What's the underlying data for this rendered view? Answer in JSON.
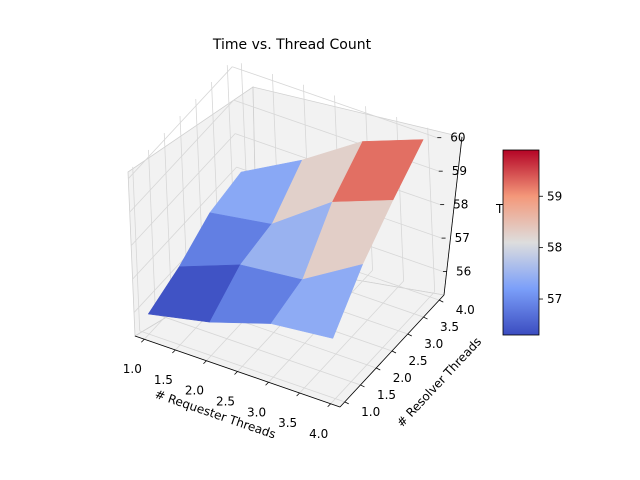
{
  "chart_data": {
    "type": "surface",
    "title": "Time vs. Thread Count",
    "xlabel": "# Requester Threads",
    "ylabel": "# Resolver Threads",
    "zlabel": "T",
    "x": [
      1,
      2,
      3,
      4
    ],
    "y": [
      1,
      2,
      3,
      4
    ],
    "z": [
      [
        55.9,
        56.3,
        56.9,
        57.1
      ],
      [
        56.3,
        57.0,
        57.2,
        58.1
      ],
      [
        56.9,
        57.2,
        58.5,
        59.3
      ],
      [
        57.1,
        58.3,
        59.2,
        60.0
      ]
    ],
    "xticks": [
      "1.0",
      "1.5",
      "2.0",
      "2.5",
      "3.0",
      "3.5",
      "4.0"
    ],
    "yticks": [
      "1.0",
      "1.5",
      "2.0",
      "2.5",
      "3.0",
      "3.5",
      "4.0"
    ],
    "zticks": [
      "56",
      "57",
      "58",
      "59",
      "60"
    ],
    "zlim": [
      55.3,
      60.2
    ],
    "colormap": "coolwarm",
    "colorbar": {
      "ticks": [
        "57",
        "58",
        "59"
      ],
      "tick_values": [
        57,
        58,
        59
      ],
      "range": [
        56.3,
        59.9
      ]
    },
    "colors": {
      "low": "#3b4cc0",
      "mid": "#dddddd",
      "high": "#b40426",
      "pane": "#f2f2f2",
      "grid": "#d7d7d7"
    }
  }
}
